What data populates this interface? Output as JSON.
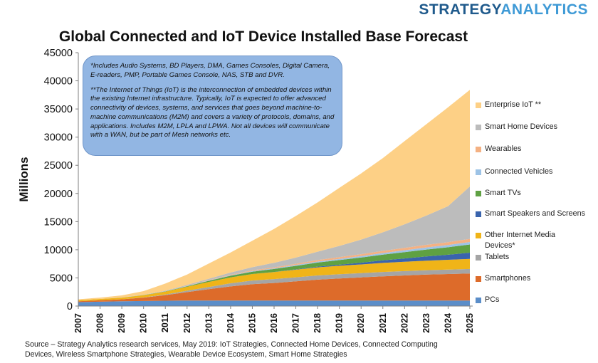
{
  "brand": {
    "part1": "STRATEGY",
    "part2": "ANALYTICS"
  },
  "chart_data": {
    "type": "area",
    "stacked": true,
    "title": "Global Connected and IoT Device Installed Base Forecast",
    "xlabel": "",
    "ylabel": "Millions",
    "ylim": [
      0,
      45000
    ],
    "yticks": [
      0,
      5000,
      10000,
      15000,
      20000,
      25000,
      30000,
      35000,
      40000,
      45000
    ],
    "categories": [
      "2007",
      "2008",
      "2009",
      "2010",
      "2011",
      "2012",
      "2013",
      "2014",
      "2015",
      "2016",
      "2017",
      "2018",
      "2019",
      "2020",
      "2021",
      "2022",
      "2023",
      "2024",
      "2025"
    ],
    "series": [
      {
        "name": "PCs",
        "color": "#5b8ec9",
        "values": [
          700,
          770,
          850,
          900,
          950,
          980,
          990,
          990,
          990,
          990,
          990,
          990,
          990,
          990,
          990,
          990,
          990,
          990,
          990
        ]
      },
      {
        "name": "Smartphones",
        "color": "#dd6b2a",
        "values": [
          150,
          250,
          350,
          600,
          1000,
          1500,
          2000,
          2500,
          2900,
          3100,
          3400,
          3700,
          3900,
          4100,
          4300,
          4450,
          4600,
          4700,
          4800
        ]
      },
      {
        "name": "Tablets",
        "color": "#a5a5a5",
        "values": [
          0,
          0,
          0,
          30,
          100,
          250,
          400,
          550,
          650,
          700,
          720,
          740,
          760,
          760,
          770,
          770,
          780,
          780,
          790
        ]
      },
      {
        "name": "Other Internet Media Devices*",
        "color": "#f0b418",
        "values": [
          200,
          250,
          300,
          400,
          500,
          700,
          900,
          1050,
          1150,
          1250,
          1350,
          1450,
          1500,
          1550,
          1600,
          1650,
          1700,
          1750,
          1800
        ]
      },
      {
        "name": "Smart Speakers and Screens",
        "color": "#3a64ad",
        "values": [
          0,
          0,
          0,
          0,
          0,
          0,
          0,
          0,
          0,
          20,
          60,
          120,
          200,
          300,
          450,
          600,
          750,
          900,
          1100
        ]
      },
      {
        "name": "Smart TVs",
        "color": "#5fa143",
        "values": [
          0,
          0,
          10,
          30,
          60,
          100,
          200,
          300,
          420,
          520,
          620,
          720,
          820,
          920,
          1020,
          1120,
          1220,
          1320,
          1450
        ]
      },
      {
        "name": "Connected Vehicles",
        "color": "#9dc3e6",
        "values": [
          0,
          0,
          0,
          10,
          20,
          40,
          60,
          80,
          100,
          120,
          150,
          180,
          210,
          250,
          290,
          330,
          370,
          410,
          450
        ]
      },
      {
        "name": "Wearables",
        "color": "#f4b183",
        "values": [
          0,
          0,
          0,
          0,
          10,
          30,
          60,
          100,
          140,
          180,
          220,
          260,
          300,
          340,
          380,
          420,
          460,
          500,
          550
        ]
      },
      {
        "name": "Smart Home Devices",
        "color": "#bcbcbc",
        "values": [
          0,
          0,
          20,
          40,
          80,
          150,
          250,
          380,
          550,
          800,
          1100,
          1500,
          2000,
          2600,
          3300,
          4200,
          5200,
          6400,
          9300
        ]
      },
      {
        "name": "Enterprise IoT **",
        "color": "#fdd086",
        "values": [
          150,
          230,
          370,
          640,
          1280,
          1850,
          2690,
          3550,
          4700,
          6020,
          7390,
          8740,
          10320,
          11740,
          13180,
          14770,
          16230,
          17550,
          17170
        ]
      }
    ]
  },
  "legend": {
    "items": [
      "Enterprise IoT **",
      "Smart Home Devices",
      "Wearables",
      "Connected Vehicles",
      "Smart TVs",
      "Smart Speakers and Screens",
      "Other Internet Media Devices*",
      "Tablets",
      "Smartphones",
      "PCs"
    ]
  },
  "note": {
    "line1": "*Includes Audio Systems, BD Players, DMA, Games Consoles, Digital Camera, E-readers, PMP, Portable Games Console, NAS, STB and DVR.",
    "line2": "**The Internet of Things (IoT) is the interconnection of embedded devices within the existing Internet infrastructure. Typically, IoT is expected to offer advanced connectivity of devices, systems, and services that goes beyond machine-to-machine communications (M2M) and covers a variety of protocols, domains, and applications. Includes M2M, LPLA and LPWA. Not all devices will communicate with a WAN, but be part of Mesh networks etc."
  },
  "source": "Source – Strategy Analytics research services, May 2019: IoT Strategies, Connected Home Devices, Connected Computing Devices, Wireless Smartphone Strategies, Wearable Device Ecosystem,  Smart Home Strategies"
}
